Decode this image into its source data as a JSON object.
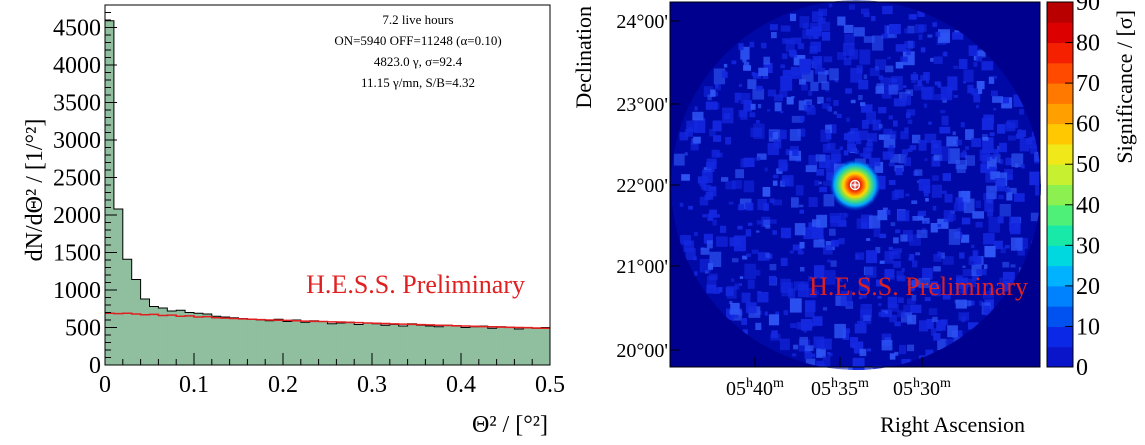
{
  "chart_data": [
    {
      "type": "histogram",
      "xlabel": "Θ² / [°²]",
      "ylabel": "dN/dΘ² / [1/°²]",
      "xlim": [
        0,
        0.5
      ],
      "ylim": [
        0,
        4800
      ],
      "xticks": [
        "0",
        "0.1",
        "0.2",
        "0.3",
        "0.4",
        "0.5"
      ],
      "yticks": [
        "0",
        "500",
        "1000",
        "1500",
        "2000",
        "2500",
        "3000",
        "3500",
        "4000",
        "4500"
      ],
      "bin_width": 0.01,
      "series": [
        {
          "style": "filled-histogram",
          "color": "#8fbf9f",
          "values": [
            4590,
            2080,
            1410,
            1140,
            880,
            780,
            760,
            720,
            730,
            700,
            690,
            680,
            650,
            640,
            630,
            620,
            610,
            600,
            590,
            610,
            580,
            600,
            570,
            590,
            580,
            550,
            560,
            570,
            540,
            560,
            550,
            530,
            540,
            520,
            550,
            530,
            520,
            510,
            530,
            520,
            500,
            510,
            520,
            490,
            510,
            500,
            480,
            500,
            490,
            500
          ]
        },
        {
          "style": "step-line",
          "color": "#e02020",
          "values": [
            690,
            685,
            690,
            680,
            670,
            675,
            660,
            665,
            650,
            655,
            640,
            645,
            630,
            625,
            620,
            615,
            610,
            605,
            600,
            598,
            595,
            590,
            585,
            583,
            580,
            575,
            572,
            568,
            565,
            560,
            556,
            552,
            548,
            545,
            542,
            538,
            535,
            530,
            527,
            523,
            520,
            516,
            513,
            510,
            506,
            503,
            500,
            497,
            493,
            490
          ]
        }
      ],
      "stats": [
        "7.2 live hours",
        "ON=5940 OFF=11248 (α=0.10)",
        "4823.0 γ, σ=92.4",
        "11.15 γ/mn, S/B=4.32"
      ],
      "watermark": "H.E.S.S. Preliminary"
    },
    {
      "type": "heatmap",
      "xlabel": "Right Ascension",
      "ylabel": "Declination",
      "zlabel": "Significance / [σ]",
      "xticks": [
        "05h40m",
        "05h35m",
        "05h30m"
      ],
      "yticks": [
        "20°00'",
        "21°00'",
        "22°00'",
        "23°00'",
        "24°00'"
      ],
      "zlim": [
        0,
        90
      ],
      "zticks": [
        "0",
        "10",
        "20",
        "30",
        "40",
        "50",
        "60",
        "70",
        "80",
        "90"
      ],
      "source": {
        "ra": "05h34m30s",
        "dec": "22°00'",
        "peak_significance": 90
      },
      "watermark": "H.E.S.S. Preliminary"
    }
  ]
}
